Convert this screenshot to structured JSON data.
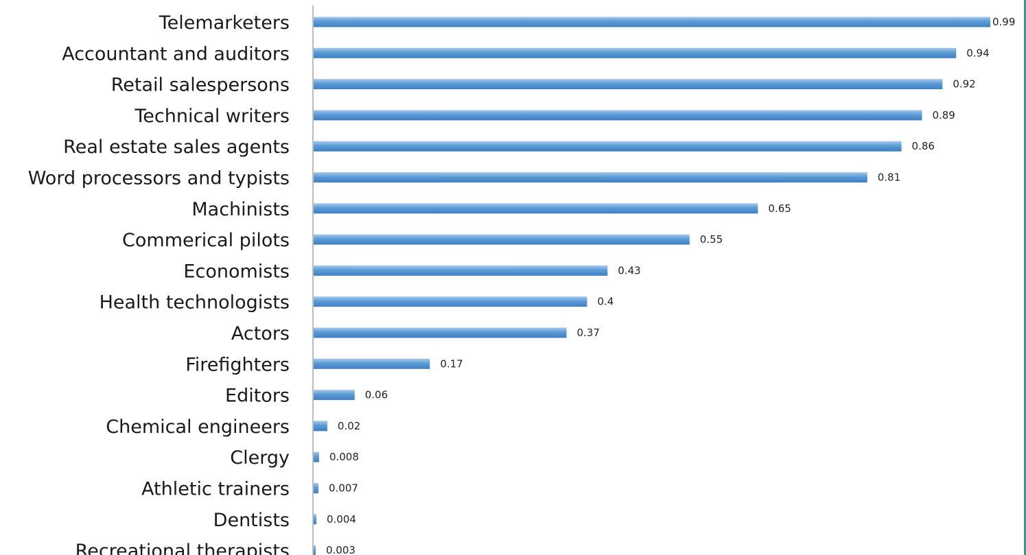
{
  "chart_data": {
    "type": "bar",
    "orientation": "horizontal",
    "categories": [
      "Telemarketers",
      "Accountant and auditors",
      "Retail salespersons",
      "Technical writers",
      "Real estate sales agents",
      "Word processors and typists",
      "Machinists",
      "Commerical pilots",
      "Economists",
      "Health technologists",
      "Actors",
      "Firefighters",
      "Editors",
      "Chemical engineers",
      "Clergy",
      "Athletic trainers",
      "Dentists",
      "Recreational therapists"
    ],
    "values": [
      0.99,
      0.94,
      0.92,
      0.89,
      0.86,
      0.81,
      0.65,
      0.55,
      0.43,
      0.4,
      0.37,
      0.17,
      0.06,
      0.02,
      0.008,
      0.007,
      0.004,
      0.003
    ],
    "value_labels": [
      "0.99",
      "0.94",
      "0.92",
      "0.89",
      "0.86",
      "0.81",
      "0.65",
      "0.55",
      "0.43",
      "0.4",
      "0.37",
      "0.17",
      "0.06",
      "0.02",
      "0.008",
      "0.007",
      "0.004",
      "0.003"
    ],
    "xlim": [
      0,
      1
    ],
    "grid": false,
    "legend": false,
    "colors": {
      "bar": "#5b9bd5",
      "bar_light": "#a9c9ee",
      "bar_dark": "#3f7fc4",
      "axis": "#a6a6a6",
      "frame": "#3f8f97"
    }
  }
}
